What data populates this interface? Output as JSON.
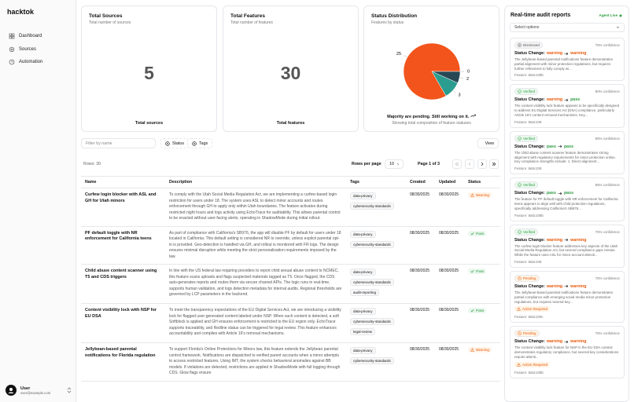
{
  "sidebar": {
    "brand": "hacktok",
    "nav": [
      "Dashboard",
      "Sources",
      "Automation"
    ],
    "user": {
      "name": "User",
      "email": "user@example.com"
    }
  },
  "cards": [
    {
      "title": "Total Sources",
      "subtitle": "Total number of sources",
      "value": 5,
      "footer": "Total sources"
    },
    {
      "title": "Total Features",
      "subtitle": "Total number of features",
      "value": 30,
      "footer": "Total features"
    }
  ],
  "chart_data": {
    "type": "pie",
    "title": "Status Distribution",
    "subtitle": "Features by status",
    "values": [
      25,
      0,
      2,
      3
    ],
    "colors": [
      "#f2541b",
      "#e8c468",
      "#274754",
      "#2a9d90"
    ],
    "footer": "Majority are pending. Still working on it.",
    "caption": "Showing total composition of feature statuses"
  },
  "toolbar": {
    "filter_placeholder": "Filter by name",
    "filters": [
      "Status",
      "Tags"
    ],
    "view": "View",
    "rows_count": "Rows: 30",
    "rows_per_page_label": "Rows per page",
    "rows_per_page": "10",
    "page": "Page 1 of 3"
  },
  "table": {
    "headers": [
      "Name",
      "Description",
      "Tags",
      "Created",
      "Updated",
      "Status"
    ],
    "rows": [
      {
        "name": "Curfew login blocker with ASL and GH for Utah minors",
        "description": "To comply with the Utah Social Media Regulation Act, we are implementing a curfew-based login restriction for users under 18. The system uses ASL to detect minor accounts and routes enforcement through GH to apply only within Utah boundaries. The feature activates during restricted night hours and logs activity using EchoTrace for auditability. This allows parental control to be enacted without user-facing alerts, operating in ShadowMode during initial rollout.",
        "tags": [
          "data-privacy",
          "cybersecurity-standards"
        ],
        "created": "08/30/2025",
        "updated": "08/30/2025",
        "status": "Warning"
      },
      {
        "name": "PF default toggle with NR enforcement for California teens",
        "description": "As part of compliance with California's SB976, the app will disable PF by default for users under 18 located in California. This default setting is considered NR to override, unless explicit parental opt-in is provided. Geo-detection is handled via GH, and rollout is monitored with FR logs. The design ensures minimal disruption while meeting the strict personalization requirements imposed by the law.",
        "tags": [
          "data-privacy",
          "cybersecurity-standards"
        ],
        "created": "08/30/2025",
        "updated": "08/30/2025",
        "status": "Pass"
      },
      {
        "name": "Child abuse content scanner using T5 and CDS triggers",
        "description": "In line with the US federal law requiring providers to report child sexual abuse content to NCMEC, this feature scans uploads and flags suspected materials tagged as T5. Once flagged, the CDS auto-generates reports and routes them via secure channel APIs. The logic runs in real-time, supports human validation, and logs detection metadata for internal audits. Regional thresholds are governed by LCP parameters in the backend.",
        "tags": [
          "data-privacy",
          "cybersecurity-standards",
          "audit-reporting"
        ],
        "created": "08/30/2025",
        "updated": "08/30/2025",
        "status": "Pass"
      },
      {
        "name": "Content visibility lock with NSP for EU DSA",
        "description": "To meet the transparency expectations of the EU Digital Services Act, we are introducing a visibility lock for flagged user-generated content labeled under NSP. When such content is detected, a soft Softblock is applied and GH ensures enforcement is restricted to the EU region only. EchoTrace supports traceability, and Redline status can be triggered for legal review. This feature enhances accountability and complies with Article 16's removal mechanisms.",
        "tags": [
          "data-privacy",
          "cybersecurity-standards",
          "legal-review"
        ],
        "created": "08/30/2025",
        "updated": "08/30/2025",
        "status": "Pass"
      },
      {
        "name": "Jellybean-based parental notifications for Florida regulation",
        "description": "To support Florida's Online Protections for Minors law, this feature extends the Jellybean parental control framework. Notifications are dispatched to verified parent accounts when a minor attempts to access restricted features. Using IMT, the system checks behavioral anomalies against BB models. If violations are detected, restrictions are applied in ShadowMode with full logging through CDS. Glow flags ensure",
        "tags": [
          "data-privacy",
          "cybersecurity-standards"
        ],
        "created": "08/30/2025",
        "updated": "08/30/2025",
        "status": "Warning"
      }
    ]
  },
  "audit": {
    "title": "Real-time audit reports",
    "live": "Agent Live",
    "select": "Select options",
    "change_label": "Status Change:",
    "reports": [
      {
        "state": "Dismissed",
        "confidence": "75% confidence",
        "from": "warning",
        "to": "warning",
        "text": "The Jellybean-based parental notifications feature demonstrates partial alignment with minor protection regulations, but requires further refinement to fully comply wi...",
        "feature": "Feature: 8a5c108b"
      },
      {
        "state": "Verified",
        "confidence": "80% confidence",
        "from": "warning",
        "to": "pass",
        "text": "The content visibility lock feature appears to be specifically designed to address EU Digital Services Act (DSA) compliance, particularly Article 16's content removal mechanisms. Key...",
        "feature": "Feature: 8a5c108"
      },
      {
        "state": "Verified",
        "confidence": "95% confidence",
        "from": "pass",
        "to": "pass",
        "text": "The child abuse content scanner feature demonstrates strong alignment with regulatory requirements for minor protection online. Key compliance strengths include: 1. Direct alignment...",
        "feature": "Feature: 8a5c108"
      },
      {
        "state": "Verified",
        "confidence": "85% confidence",
        "from": "pass",
        "to": "pass",
        "text": "The feature for PF default toggle with NR enforcement for California teens appears to align well with child protection regulations, specifically addressing California's SB976...",
        "feature": "Feature: 8a5c108b"
      },
      {
        "state": "Verified",
        "confidence": "75% confidence",
        "from": "warning",
        "to": "warning",
        "text": "The curfew login blocker feature addresses key aspects of the Utah Social Media Regulation Act, but several compliance gaps remain. While the feature uses ASL for minor account detecti...",
        "feature": "Feature: 8a5c108"
      },
      {
        "state": "Pending",
        "confidence": "75% confidence",
        "from": "warning",
        "to": "warning",
        "text": "The Jellybean-based parental notifications feature demonstrates partial compliance with emerging social media minor protection regulations, but requires several key...",
        "action": "Action Required",
        "feature": "Feature: 8a5c109c"
      },
      {
        "state": "Pending",
        "confidence": "75% confidence",
        "from": "warning",
        "to": "warning",
        "text": "The content visibility lock feature for NSP in the EU DSA context demonstrates regulatory compliance, but several key considerations require attenti...",
        "action": "Action Required",
        "feature": "Feature: 8a5c108b"
      }
    ]
  }
}
